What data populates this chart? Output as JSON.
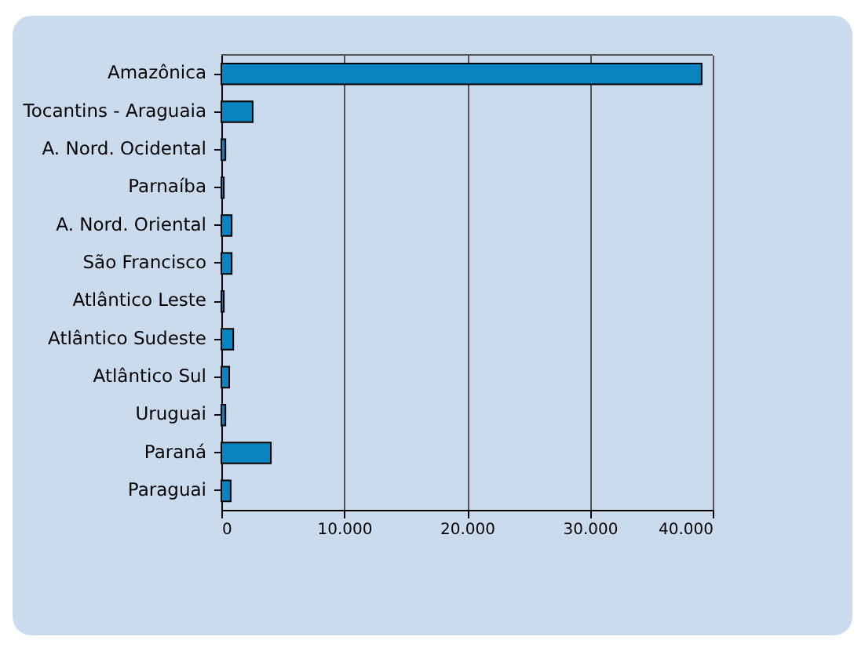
{
  "chart_data": {
    "type": "bar",
    "orientation": "horizontal",
    "categories": [
      "Amazônica",
      "Tocantins - Araguaia",
      "A. Nord. Ocidental",
      "Parnaíba",
      "A. Nord. Oriental",
      "São Francisco",
      "Atlântico Leste",
      "Atlântico Sudeste",
      "Atlântico Sul",
      "Uruguai",
      "Paraná",
      "Paraguai"
    ],
    "values": [
      39100,
      2550,
      330,
      200,
      840,
      840,
      200,
      970,
      640,
      330,
      4030,
      760
    ],
    "color": "#0a84c0",
    "xlim": [
      0,
      40000
    ],
    "xticks": [
      {
        "value": 0,
        "label": "0"
      },
      {
        "value": 10000,
        "label": "10.000"
      },
      {
        "value": 20000,
        "label": "20.000"
      },
      {
        "value": 30000,
        "label": "30.000"
      },
      {
        "value": 40000,
        "label": "40.000"
      }
    ],
    "grid": "x"
  }
}
